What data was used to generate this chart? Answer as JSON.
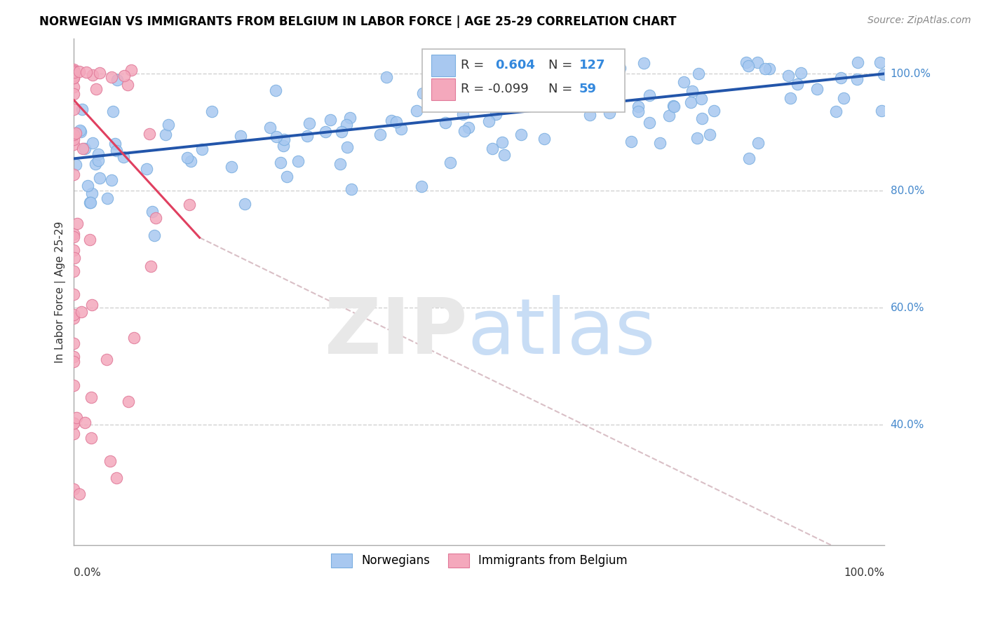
{
  "title": "NORWEGIAN VS IMMIGRANTS FROM BELGIUM IN LABOR FORCE | AGE 25-29 CORRELATION CHART",
  "source": "Source: ZipAtlas.com",
  "ylabel": "In Labor Force | Age 25-29",
  "blue_color": "#a8c8f0",
  "blue_edge_color": "#7aaee0",
  "blue_line_color": "#2255aa",
  "pink_color": "#f4a8bc",
  "pink_edge_color": "#e07898",
  "pink_line_color": "#e0406080",
  "pink_line_solid_color": "#e04060",
  "dash_color": "#d0b0b8",
  "background_color": "#ffffff",
  "grid_color": "#cccccc",
  "ytick_color": "#4488cc",
  "xmin": 0.0,
  "xmax": 1.0,
  "ymin": 0.195,
  "ymax": 1.06,
  "ytick_vals": [
    1.0,
    0.8,
    0.6,
    0.4
  ],
  "ytick_labels": [
    "100.0%",
    "80.0%",
    "60.0%",
    "40.0%"
  ],
  "blue_trend": [
    0.0,
    1.0,
    0.855,
    1.0
  ],
  "pink_trend_solid": [
    0.0,
    0.155,
    0.955,
    0.72
  ],
  "pink_trend_dash": [
    0.155,
    1.0,
    0.72,
    0.15
  ]
}
